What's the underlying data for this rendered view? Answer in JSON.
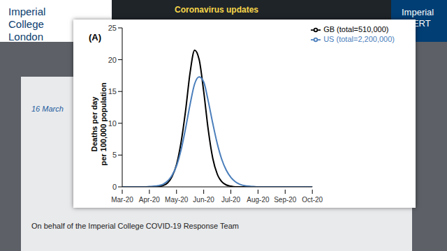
{
  "page": {
    "header": {
      "logo": "Imperial College London",
      "alert": "Coronavirus updates",
      "badge": "Imperial ALERT"
    },
    "date": "16 March",
    "footer": "On behalf of the Imperial College COVID-19 Response Team"
  },
  "chart_data": {
    "type": "line",
    "title": "(A)",
    "y_label": "Deaths per day\nper 100,000 population",
    "categories": [
      "Mar-20",
      null,
      null,
      null,
      null,
      null,
      "Apr-20",
      null,
      null,
      null,
      null,
      null,
      "May-20",
      null,
      null,
      null,
      null,
      null,
      "Jun-20",
      null,
      null,
      null,
      null,
      null,
      "Jul-20",
      null,
      null,
      null,
      null,
      null,
      "Aug-20",
      null,
      null,
      null,
      null,
      null,
      "Sep-20",
      null,
      null,
      null,
      null,
      null,
      "Oct-20"
    ],
    "series": [
      {
        "name": "GB (total=510,000)",
        "color": "#000000",
        "values": [
          0,
          0,
          0,
          0,
          0,
          0,
          0,
          0,
          0.05,
          0.2,
          0.6,
          1.6,
          3.5,
          7,
          12,
          18,
          21.5,
          20,
          15,
          9,
          4.5,
          2,
          0.8,
          0.3,
          0.1,
          0,
          0,
          0,
          0,
          0,
          0,
          0,
          0,
          0,
          0,
          0,
          0,
          0,
          0,
          0,
          0,
          0,
          0
        ]
      },
      {
        "name": "US (total=2,200,000)",
        "color": "#4a7ebb",
        "values": [
          0,
          0,
          0,
          0,
          0,
          0,
          0.05,
          0.1,
          0.2,
          0.4,
          0.9,
          1.8,
          3.3,
          5.8,
          9.2,
          13,
          16.2,
          17.3,
          16.5,
          13.5,
          10,
          6.8,
          4.3,
          2.6,
          1.5,
          0.8,
          0.4,
          0.2,
          0.1,
          0.05,
          0,
          0,
          0,
          0,
          0,
          0,
          0,
          0,
          0,
          0,
          0,
          0,
          0
        ]
      }
    ],
    "ylim": [
      0,
      25
    ],
    "yticks": [
      0,
      5,
      10,
      15,
      20,
      25
    ],
    "legend": "top-right",
    "grid": false
  }
}
